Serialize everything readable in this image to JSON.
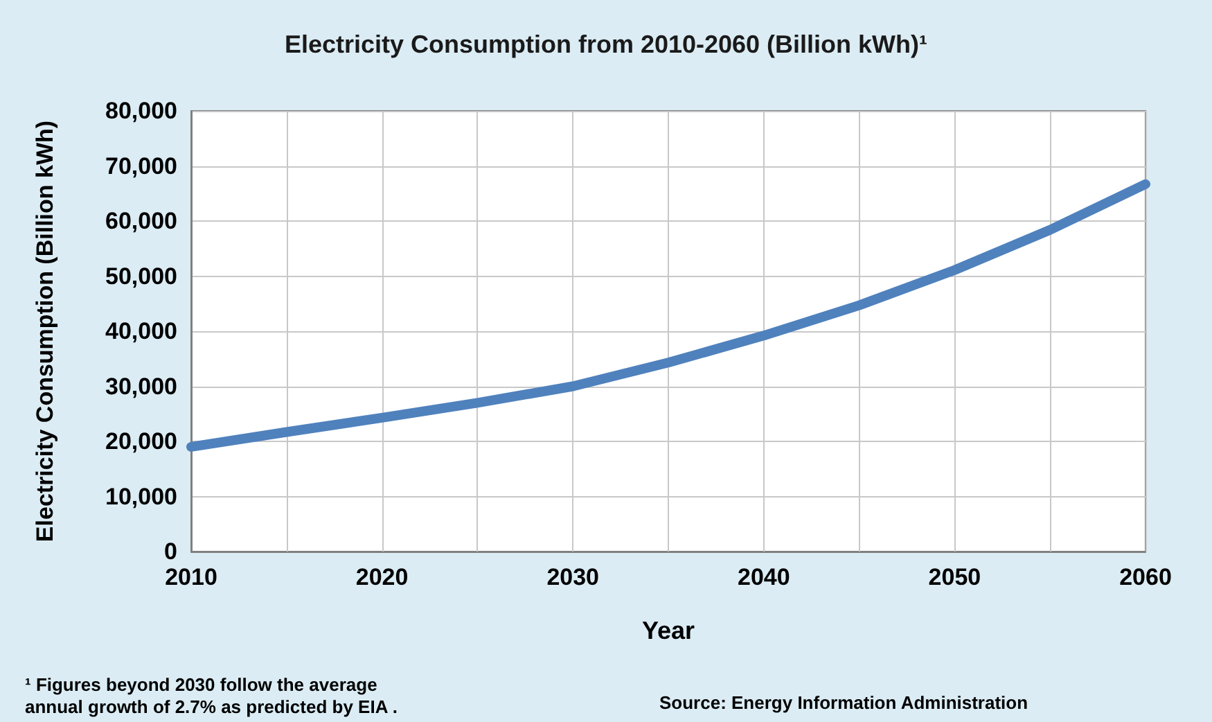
{
  "chart_data": {
    "type": "line",
    "title": "Electricity Consumption from 2010-2060 (Billion kWh)¹",
    "xlabel": "Year",
    "ylabel": "Electricity Consumption (Billion kWh)",
    "x": [
      2010,
      2015,
      2020,
      2025,
      2030,
      2035,
      2040,
      2045,
      2050,
      2055,
      2060
    ],
    "series": [
      {
        "color": "#4f81bd",
        "values": [
          19000,
          21700,
          24300,
          27000,
          30000,
          34300,
          39200,
          44700,
          51100,
          58400,
          66700
        ]
      }
    ],
    "xlim": [
      2010,
      2060
    ],
    "xticks": [
      2010,
      {
        "value": 2015,
        "label": null
      },
      2020,
      {
        "value": 2025,
        "label": null
      },
      2030,
      {
        "value": 2035,
        "label": null
      },
      2040,
      {
        "value": 2045,
        "label": null
      },
      2050,
      {
        "value": 2055,
        "label": null
      },
      2060
    ],
    "ylim": [
      0,
      80000
    ],
    "yticks": [
      0,
      {
        "value": 10000,
        "label": "10,000"
      },
      {
        "value": 20000,
        "label": "20,000"
      },
      {
        "value": 30000,
        "label": "30,000"
      },
      {
        "value": 40000,
        "label": "40,000"
      },
      {
        "value": 50000,
        "label": "50,000"
      },
      {
        "value": 60000,
        "label": "60,000"
      },
      {
        "value": 70000,
        "label": "70,000"
      },
      {
        "value": 80000,
        "label": "80,000"
      }
    ],
    "grid": true,
    "line_style": "solid",
    "annotations": [
      "¹ Figures beyond 2030 follow the average\nannual growth of 2.7% as predicted by EIA .",
      "Source: Energy Information Administration"
    ]
  }
}
